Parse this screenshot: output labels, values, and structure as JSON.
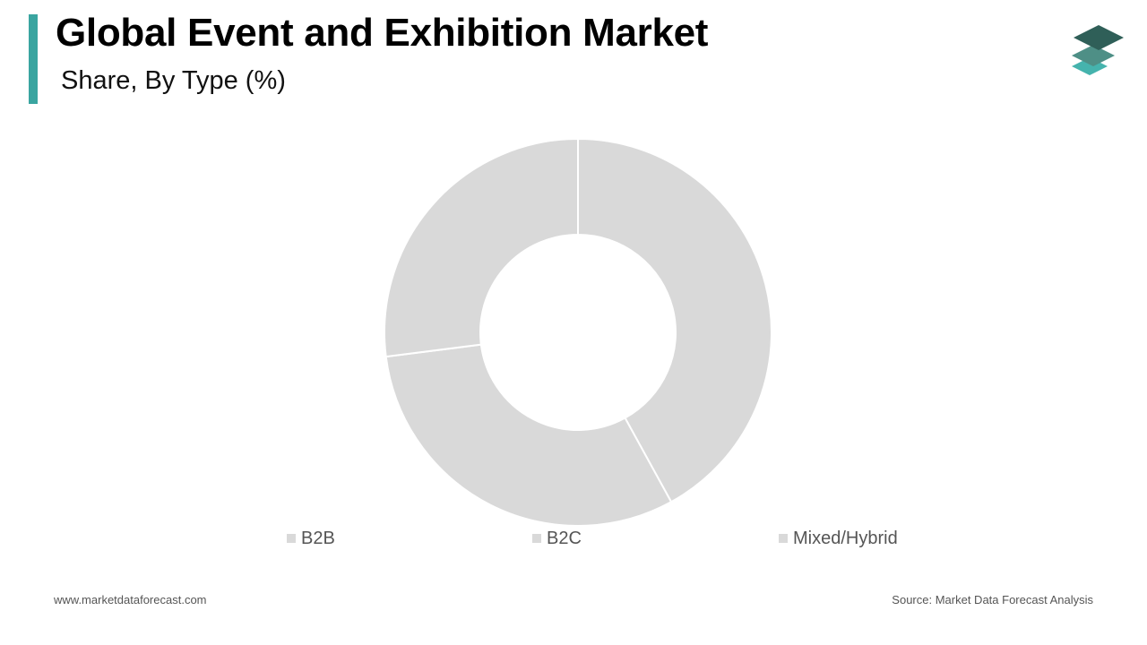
{
  "header": {
    "title": "Global Event and Exhibition Market",
    "subtitle": "Share, By Type (%)"
  },
  "colors": {
    "accent": "#3aa5a0",
    "slice": "#d9d9d9",
    "slice_border": "#ffffff",
    "logo_dark": "#2f5f58",
    "logo_mid": "#4e8f86",
    "logo_light": "#45b3ad"
  },
  "logo": {
    "icon": "stacked-layers-icon"
  },
  "chart_data": {
    "type": "pie",
    "donut": true,
    "categories": [
      "B2B",
      "B2C",
      "Mixed/Hybrid"
    ],
    "values": [
      42,
      31,
      27
    ],
    "legend": "bottom"
  },
  "footer": {
    "website": "www.marketdataforecast.com",
    "source": "Source: Market Data Forecast Analysis"
  }
}
